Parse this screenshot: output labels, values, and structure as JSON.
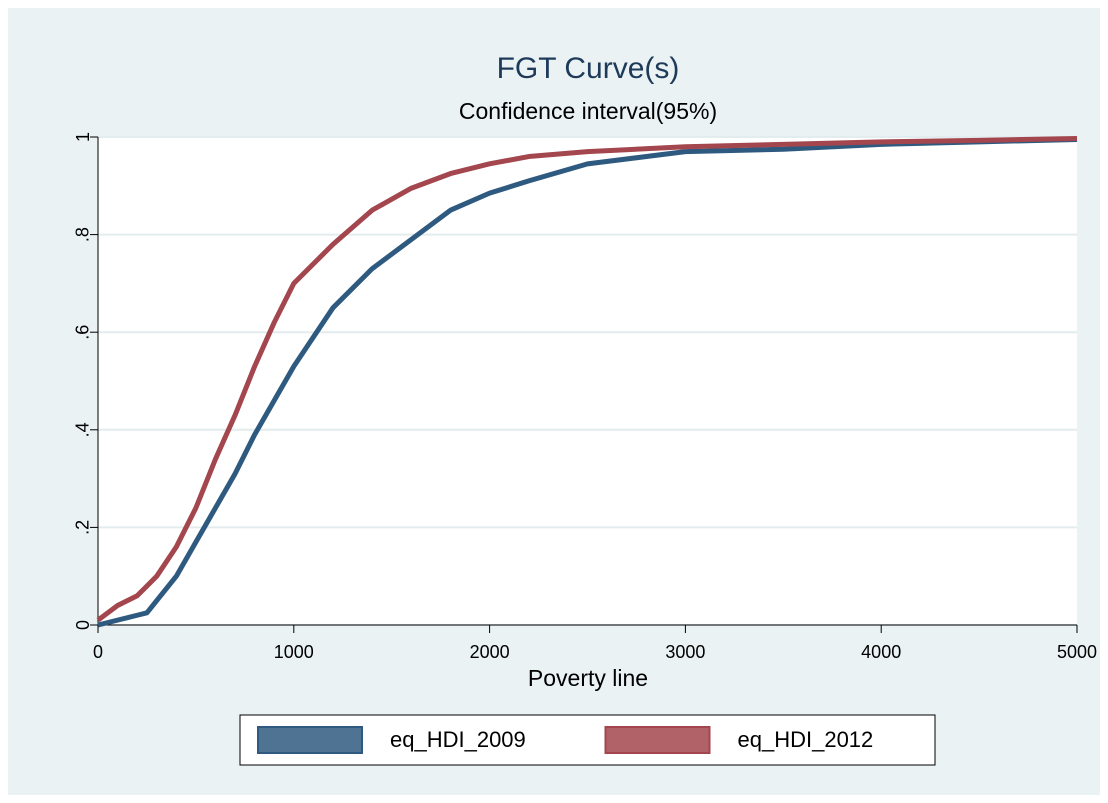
{
  "chart_data": {
    "type": "line",
    "title": "FGT Curve(s)",
    "subtitle": "Confidence interval(95%)",
    "x_label": "Poverty line",
    "x": [
      0,
      100,
      200,
      250,
      300,
      400,
      500,
      600,
      700,
      800,
      900,
      1000,
      1200,
      1400,
      1600,
      1800,
      2000,
      2200,
      2500,
      3000,
      3500,
      4000,
      4500,
      5000
    ],
    "series": [
      {
        "name": "eq_HDI_2009",
        "color": "#2f5a80",
        "values": [
          0,
          0.01,
          0.02,
          0.025,
          0.05,
          0.1,
          0.17,
          0.24,
          0.31,
          0.39,
          0.46,
          0.53,
          0.65,
          0.73,
          0.79,
          0.85,
          0.885,
          0.91,
          0.945,
          0.97,
          0.975,
          0.985,
          0.99,
          0.995
        ]
      },
      {
        "name": "eq_HDI_2012",
        "color": "#a3464e",
        "values": [
          0.01,
          0.04,
          0.06,
          0.08,
          0.1,
          0.16,
          0.24,
          0.34,
          0.43,
          0.53,
          0.62,
          0.7,
          0.78,
          0.85,
          0.895,
          0.925,
          0.945,
          0.96,
          0.97,
          0.98,
          0.985,
          0.99,
          0.993,
          0.997
        ]
      }
    ],
    "xlim": [
      0,
      5000
    ],
    "xticks": [
      0,
      1000,
      2000,
      3000,
      4000,
      5000
    ],
    "ylim": [
      0,
      1
    ],
    "yticks": [
      0,
      {
        "value": 0.2,
        "label": ".2"
      },
      {
        "value": 0.4,
        "label": ".4"
      },
      {
        "value": 0.6,
        "label": ".6"
      },
      {
        "value": 0.8,
        "label": ".8"
      },
      1
    ],
    "grid": true,
    "legend_position": "bottom"
  }
}
